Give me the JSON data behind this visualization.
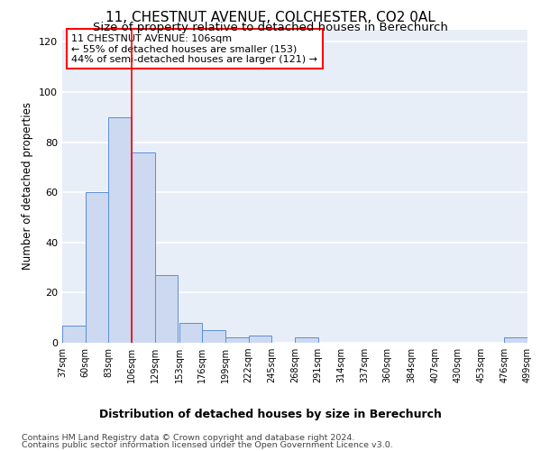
{
  "title": "11, CHESTNUT AVENUE, COLCHESTER, CO2 0AL",
  "subtitle": "Size of property relative to detached houses in Berechurch",
  "xlabel_bottom": "Distribution of detached houses by size in Berechurch",
  "ylabel": "Number of detached properties",
  "footnote1": "Contains HM Land Registry data © Crown copyright and database right 2024.",
  "footnote2": "Contains public sector information licensed under the Open Government Licence v3.0.",
  "annotation_line1": "11 CHESTNUT AVENUE: 106sqm",
  "annotation_line2": "← 55% of detached houses are smaller (153)",
  "annotation_line3": "44% of semi-detached houses are larger (121) →",
  "bar_edges": [
    37,
    60,
    83,
    106,
    129,
    153,
    176,
    199,
    222,
    245,
    268,
    291,
    314,
    337,
    360,
    384,
    407,
    430,
    453,
    476,
    499
  ],
  "bar_heights": [
    7,
    60,
    90,
    76,
    27,
    8,
    5,
    2,
    3,
    0,
    2,
    0,
    0,
    0,
    0,
    0,
    0,
    0,
    0,
    2,
    0
  ],
  "bar_color": "#ccd9f0",
  "bar_edge_color": "#5b8ed6",
  "red_line_x": 106,
  "ylim": [
    0,
    125
  ],
  "yticks": [
    0,
    20,
    40,
    60,
    80,
    100,
    120
  ],
  "background_color": "#e8eef8",
  "grid_color": "#ffffff",
  "title_fontsize": 11,
  "subtitle_fontsize": 9.5,
  "ylabel_fontsize": 8.5,
  "xlabel_fontsize": 9,
  "xtick_fontsize": 7,
  "ytick_fontsize": 8,
  "annotation_fontsize": 8,
  "footnote_fontsize": 6.8
}
